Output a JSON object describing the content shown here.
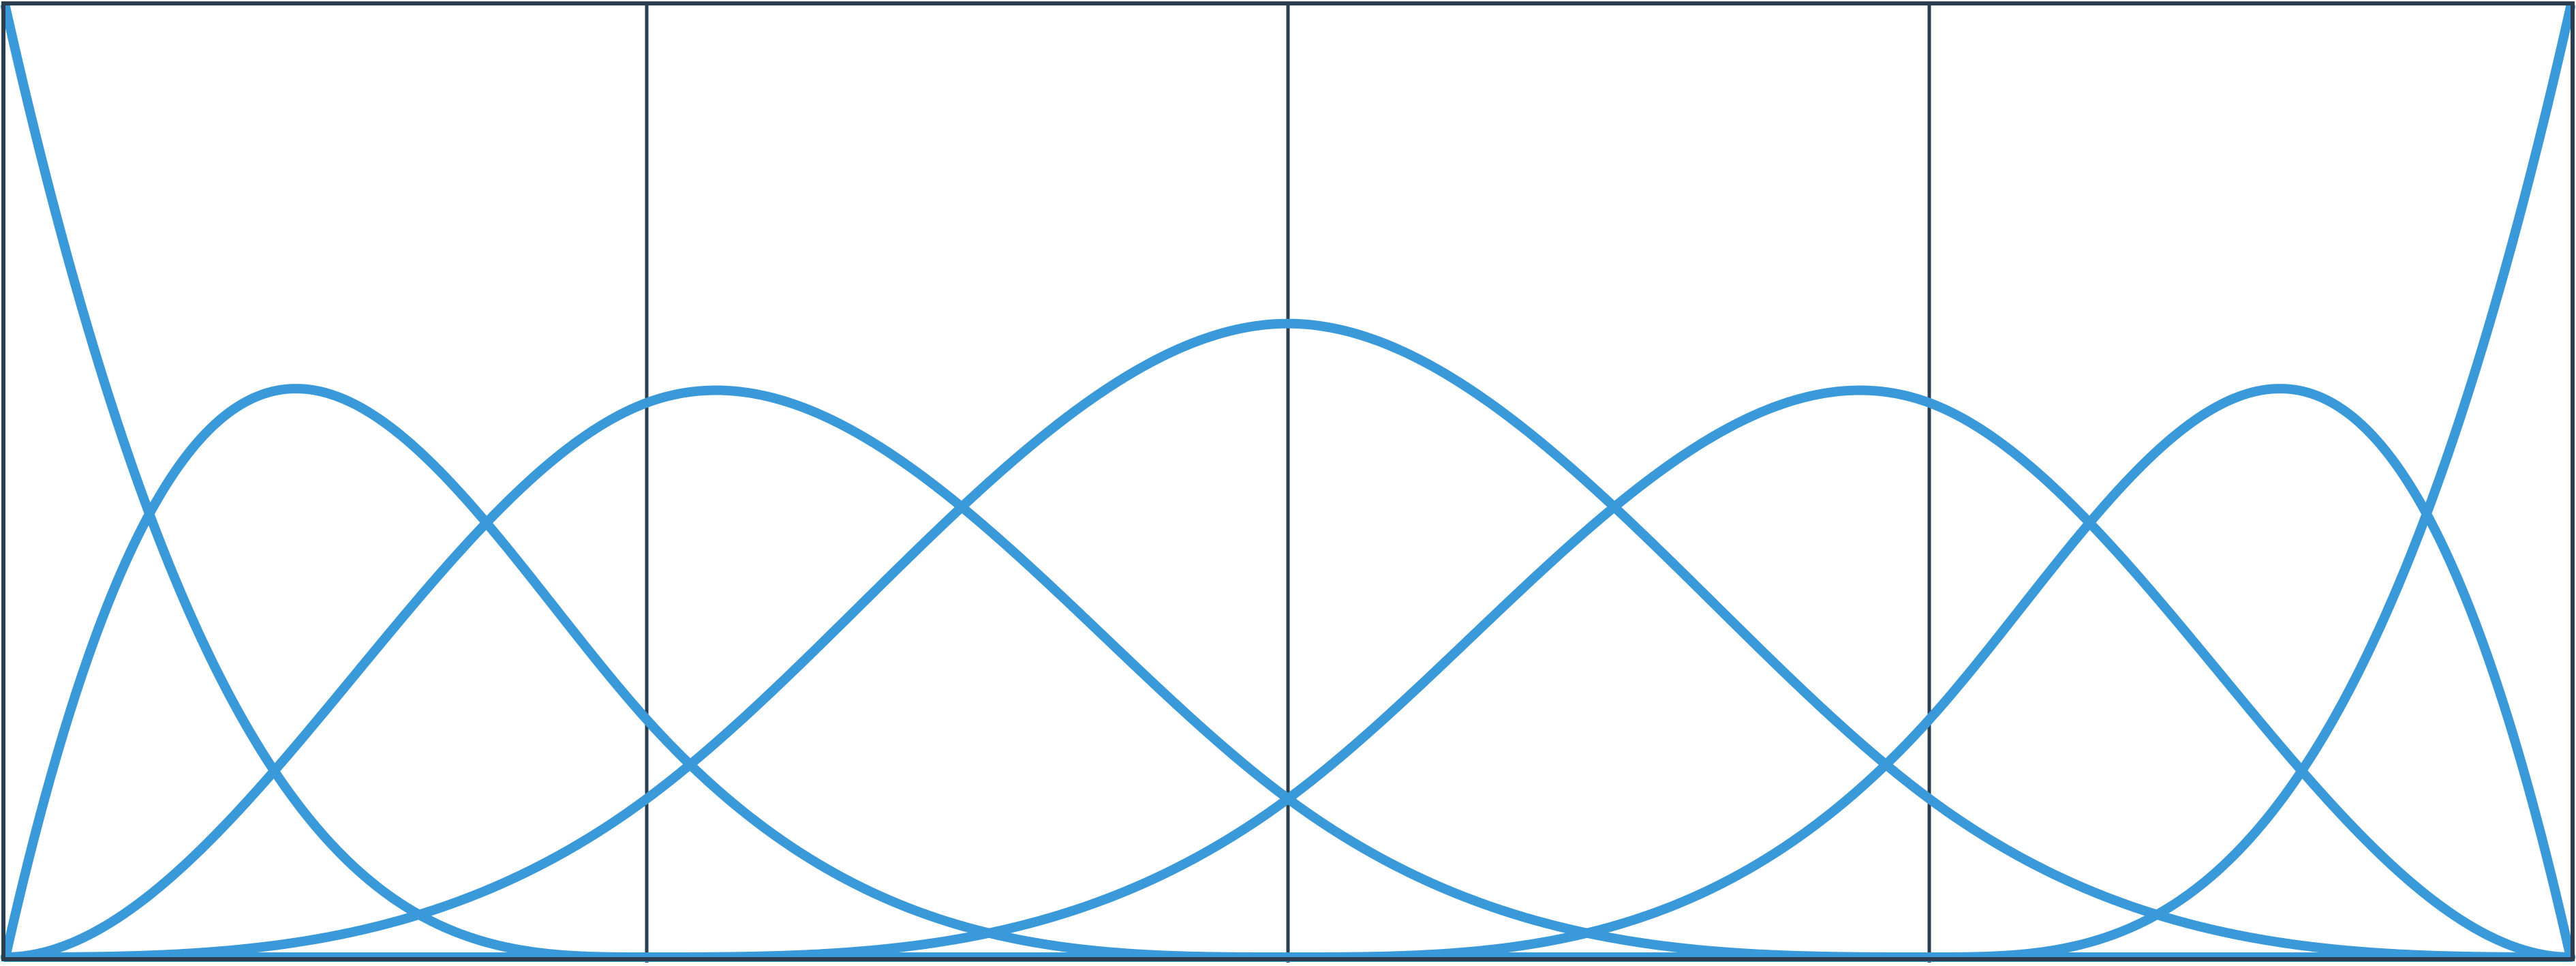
{
  "chart_data": {
    "type": "line",
    "title": "",
    "xlabel": "",
    "ylabel": "",
    "xlim": [
      0,
      4
    ],
    "ylim": [
      0,
      1
    ],
    "grid": {
      "vertical_lines_at": [
        1,
        2,
        3
      ]
    },
    "knots": [
      0,
      0,
      0,
      0,
      1,
      2,
      3,
      4,
      4,
      4,
      4
    ],
    "degree": 3,
    "basis_functions": 7,
    "series": [
      {
        "x": [
          0,
          0.5,
          1,
          2,
          3,
          4
        ],
        "values": [
          1.0,
          0.125,
          0.0,
          0.0,
          0.0,
          0.0
        ]
      },
      {
        "x": [
          0,
          0.45,
          1,
          1.5,
          2,
          3,
          4
        ],
        "values": [
          0.0,
          0.59,
          0.25,
          0.031,
          0.0,
          0.0,
          0.0
        ]
      },
      {
        "x": [
          0,
          1,
          1.11,
          2,
          2.5,
          3,
          4
        ],
        "values": [
          0.0,
          0.58,
          0.59,
          0.167,
          0.021,
          0.0,
          0.0
        ]
      },
      {
        "x": [
          0,
          1,
          1.5,
          2,
          2.5,
          3,
          4
        ],
        "values": [
          0.0,
          0.167,
          0.48,
          0.667,
          0.48,
          0.167,
          0.0
        ]
      },
      {
        "x": [
          0,
          1,
          1.5,
          2,
          2.89,
          3,
          4
        ],
        "values": [
          0.0,
          0.0,
          0.021,
          0.167,
          0.59,
          0.58,
          0.0
        ]
      },
      {
        "x": [
          0,
          1,
          2,
          2.5,
          3,
          3.55,
          4
        ],
        "values": [
          0.0,
          0.0,
          0.0,
          0.031,
          0.25,
          0.59,
          0.0
        ]
      },
      {
        "x": [
          0,
          1,
          2,
          3,
          3.5,
          4
        ],
        "values": [
          0.0,
          0.0,
          0.0,
          0.0,
          0.125,
          1.0
        ]
      }
    ],
    "colors": {
      "curve": "#3a99d8",
      "frame": "#2c3e50",
      "background": "#ffffff"
    }
  }
}
